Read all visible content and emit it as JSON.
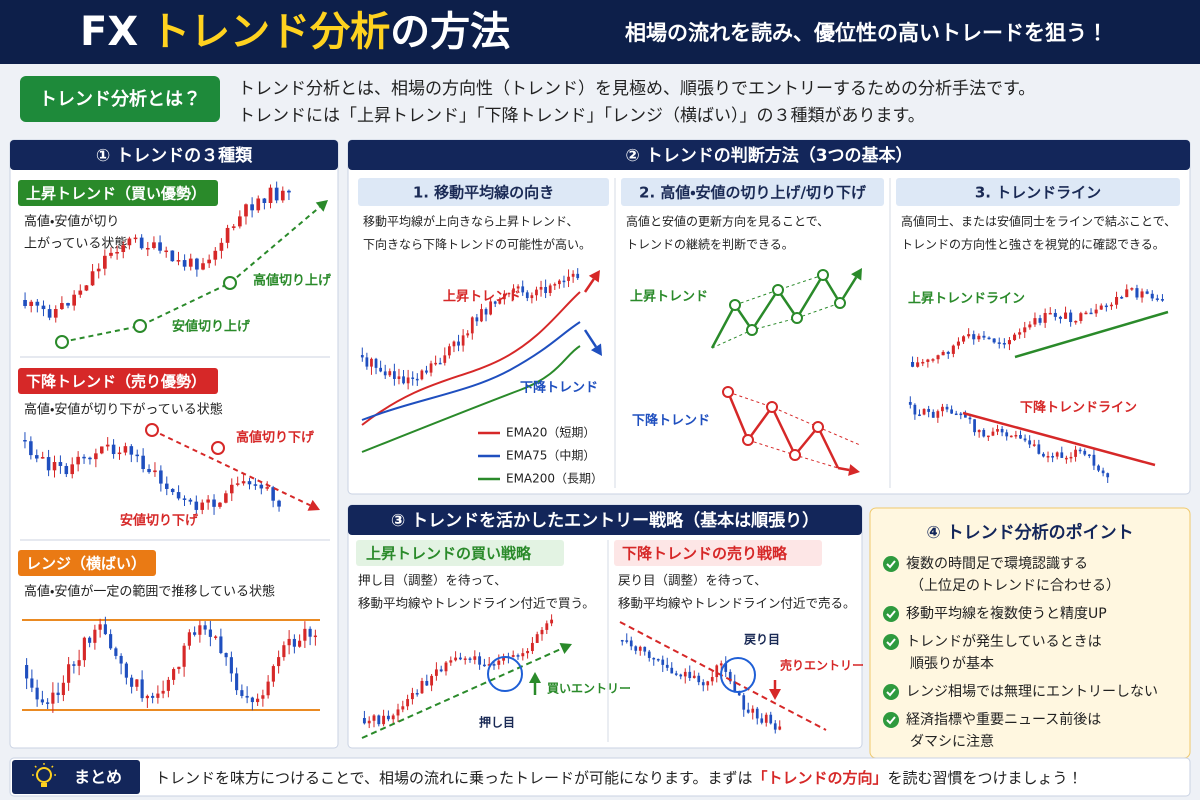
{
  "header": {
    "title_prefix": "FX",
    "title_main": "トレンド分析",
    "title_suffix": "の方法",
    "subtitle": "相場の流れを読み、優位性の高いトレードを狙う！"
  },
  "intro": {
    "label": "トレンド分析とは？",
    "lines": [
      "トレンド分析とは、相場の方向性（トレンド）を見極め、順張りでエントリーするための分析手法です。",
      "トレンドには「上昇トレンド」「下降トレンド」「レンジ（横ばい）」の３種類があります。"
    ]
  },
  "types": {
    "title": "① トレンドの３種類",
    "items": [
      {
        "label": "上昇トレンド（買い優勢）",
        "desc": [
          "高値・安値が切り",
          "上がっている状態"
        ],
        "annotations": [
          "高値切り上げ",
          "安値切り上げ"
        ]
      },
      {
        "label": "下降トレンド（売り優勢）",
        "desc": [
          "高値・安値が切り下がっている状態"
        ],
        "annotations": [
          "高値切り下げ",
          "安値切り下げ"
        ]
      },
      {
        "label": "レンジ（横ばい）",
        "desc": [
          "高値・安値が一定の範囲で推移している状態"
        ]
      }
    ]
  },
  "methods": {
    "title": "② トレンドの判断方法（3つの基本）",
    "items": [
      {
        "title": "1. 移動平均線の向き",
        "desc": [
          "移動平均線が上向きなら上昇トレンド、",
          "下向きなら下降トレンドの可能性が高い。"
        ],
        "labels": [
          "上昇トレンド",
          "下降トレンド"
        ],
        "legend": [
          "EMA20（短期）",
          "EMA75（中期）",
          "EMA200（長期）"
        ]
      },
      {
        "title": "2. 高値・安値の切り上げ/切り下げ",
        "desc": [
          "高値と安値の更新方向を見ることで、",
          "トレンドの継続を判断できる。"
        ],
        "labels": [
          "上昇トレンド",
          "下降トレンド"
        ]
      },
      {
        "title": "3. トレンドライン",
        "desc": [
          "高値同士、または安値同士をラインで結ぶことで、",
          "トレンドの方向性と強さを視覚的に確認できる。"
        ],
        "labels": [
          "上昇トレンドライン",
          "下降トレンドライン"
        ]
      }
    ]
  },
  "strategy": {
    "title": "③ トレンドを活かしたエントリー戦略（基本は順張り）",
    "items": [
      {
        "title": "上昇トレンドの買い戦略",
        "desc": [
          "押し目（調整）を待って、",
          "移動平均線やトレンドライン付近で買う。"
        ],
        "labels": [
          "押し目",
          "買いエントリー"
        ]
      },
      {
        "title": "下降トレンドの売り戦略",
        "desc": [
          "戻り目（調整）を待って、",
          "移動平均線やトレンドライン付近で売る。"
        ],
        "labels": [
          "戻り目",
          "売りエントリー"
        ]
      }
    ]
  },
  "points": {
    "title": "④ トレンド分析のポイント",
    "items": [
      [
        "複数の時間足で環境認識する",
        "（上位足のトレンドに合わせる）"
      ],
      [
        "移動平均線を複数使うと精度UP"
      ],
      [
        "トレンドが発生しているときは",
        "順張りが基本"
      ],
      [
        "レンジ相場では無理にエントリーしない"
      ],
      [
        "経済指標や重要ニュース前後は",
        "ダマシに注意"
      ]
    ]
  },
  "summary": {
    "label": "まとめ",
    "text_before": "トレンドを味方につけることで、相場の流れに乗ったトレードが可能になります。まずは",
    "highlight": "「トレンドの方向」",
    "text_after": "を読む習慣をつけましょう！"
  }
}
